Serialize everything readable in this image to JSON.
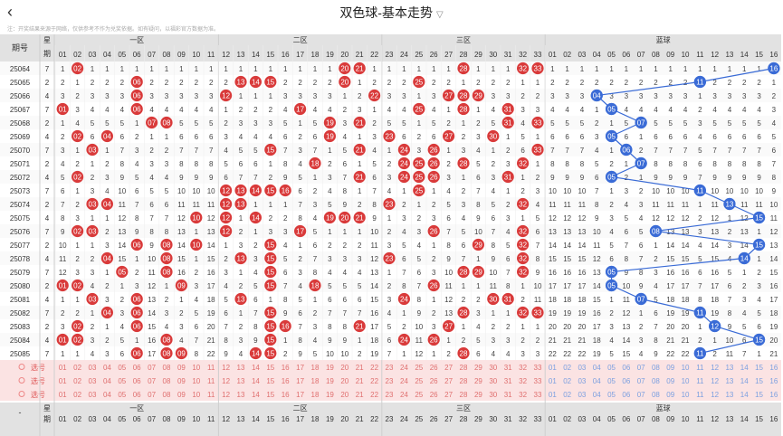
{
  "header": {
    "title": "双色球-基本走势",
    "back_label": "<",
    "dropdown": "▽"
  },
  "note": "注：开奖结果来源于网络，仅供参考不作为兑奖依据。如有疑问，以福彩官方数据为准。",
  "columns": {
    "period": "期号",
    "week_top": "星",
    "week_bottom": "期",
    "zone1": "一区",
    "zone2": "二区",
    "zone3": "三区",
    "blue": "蓝球",
    "red_nums": [
      "01",
      "02",
      "03",
      "04",
      "05",
      "06",
      "07",
      "08",
      "09",
      "10",
      "11",
      "12",
      "13",
      "14",
      "15",
      "16",
      "17",
      "18",
      "19",
      "20",
      "21",
      "22",
      "23",
      "24",
      "25",
      "26",
      "27",
      "28",
      "29",
      "30",
      "31",
      "32",
      "33"
    ],
    "blue_nums": [
      "01",
      "02",
      "03",
      "04",
      "05",
      "06",
      "07",
      "08",
      "09",
      "10",
      "11",
      "12",
      "13",
      "14",
      "15",
      "16"
    ]
  },
  "select_label": "选号",
  "footer_dash": "-",
  "periods": [
    "25064",
    "25065",
    "25066",
    "25067",
    "25068",
    "25069",
    "25070",
    "25071",
    "25072",
    "25073",
    "25074",
    "25075",
    "25076",
    "25077",
    "25078",
    "25079",
    "25080",
    "25081",
    "25082",
    "25083",
    "25084",
    "25085"
  ],
  "weeks": [
    "7",
    "2",
    "4",
    "7",
    "2",
    "4",
    "7",
    "2",
    "4",
    "7",
    "2",
    "4",
    "7",
    "2",
    "4",
    "7",
    "2",
    "4",
    "7",
    "2",
    "4",
    "7"
  ],
  "draws": [
    {
      "red": [
        2,
        20,
        21,
        28,
        32,
        33
      ],
      "blue": 16
    },
    {
      "red": [
        6,
        13,
        14,
        15,
        20,
        25
      ],
      "blue": 11
    },
    {
      "red": [
        6,
        12,
        22,
        27,
        28,
        29
      ],
      "blue": 4
    },
    {
      "red": [
        1,
        6,
        17,
        25,
        28,
        31
      ],
      "blue": 5
    },
    {
      "red": [
        7,
        8,
        19,
        21,
        31,
        33
      ],
      "blue": 7
    },
    {
      "red": [
        2,
        4,
        19,
        23,
        27,
        30
      ],
      "blue": 5
    },
    {
      "red": [
        3,
        15,
        21,
        24,
        26,
        33
      ],
      "blue": 6
    },
    {
      "red": [
        18,
        24,
        25,
        26,
        28,
        32
      ],
      "blue": 7
    },
    {
      "red": [
        2,
        21,
        24,
        25,
        26,
        31
      ],
      "blue": 5
    },
    {
      "red": [
        12,
        13,
        14,
        15,
        16,
        25
      ],
      "blue": 11
    },
    {
      "red": [
        3,
        4,
        12,
        13,
        23,
        32
      ],
      "blue": 13
    },
    {
      "red": [
        10,
        12,
        14,
        19,
        20,
        21
      ],
      "blue": 15
    },
    {
      "red": [
        2,
        3,
        12,
        17,
        26,
        32
      ],
      "blue": 8
    },
    {
      "red": [
        6,
        8,
        10,
        15,
        29,
        32
      ],
      "blue": 15
    },
    {
      "red": [
        4,
        8,
        13,
        15,
        23,
        32
      ],
      "blue": 14
    },
    {
      "red": [
        5,
        8,
        15,
        28,
        29,
        32
      ],
      "blue": 5
    },
    {
      "red": [
        1,
        2,
        9,
        15,
        18,
        26
      ],
      "blue": 5
    },
    {
      "red": [
        3,
        6,
        13,
        24,
        30,
        31
      ],
      "blue": 7
    },
    {
      "red": [
        4,
        6,
        15,
        28,
        32,
        33
      ],
      "blue": 11
    },
    {
      "red": [
        2,
        6,
        15,
        16,
        21,
        27
      ],
      "blue": 12
    },
    {
      "red": [
        1,
        2,
        8,
        15,
        24,
        26
      ],
      "blue": 15
    },
    {
      "red": [
        6,
        8,
        9,
        14,
        15,
        28
      ],
      "blue": 11
    }
  ],
  "colors": {
    "red": "#d93a3a",
    "blue": "#3a6bd6",
    "dark": "#9e2a2a",
    "hdr": "#e2e2e2",
    "stripe": "#fbe3e3"
  }
}
